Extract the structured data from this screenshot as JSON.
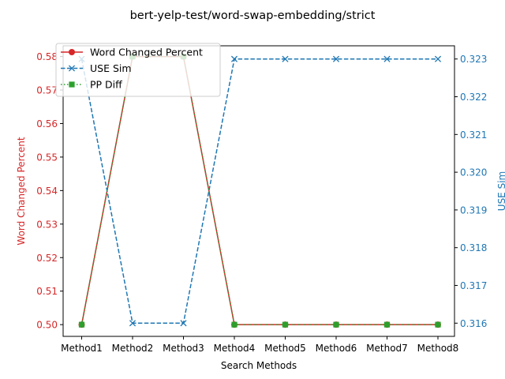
{
  "chart_data": {
    "type": "line",
    "title": "bert-yelp-test/word-swap-embedding/strict",
    "xlabel": "Search Methods",
    "ylabel_left": "Word Changed Percent",
    "ylabel_right": "USE Sim",
    "categories": [
      "Method1",
      "Method2",
      "Method3",
      "Method4",
      "Method5",
      "Method6",
      "Method7",
      "Method8"
    ],
    "left_axis": {
      "range": [
        0.4965,
        0.5832
      ],
      "ticks": [
        "0.50",
        "0.51",
        "0.52",
        "0.53",
        "0.54",
        "0.55",
        "0.56",
        "0.57",
        "0.58"
      ],
      "color": "#d62728"
    },
    "right_axis": {
      "range": [
        0.31565,
        0.32335
      ],
      "ticks": [
        "0.316",
        "0.317",
        "0.318",
        "0.319",
        "0.320",
        "0.321",
        "0.322",
        "0.323"
      ],
      "color": "#1f77b4"
    },
    "series": [
      {
        "name": "Word Changed Percent",
        "axis": "left",
        "color": "#d62728",
        "style": "solid",
        "marker": "circle",
        "values": [
          0.5,
          0.58,
          0.58,
          0.5,
          0.5,
          0.5,
          0.5,
          0.5
        ]
      },
      {
        "name": "USE Sim",
        "axis": "right",
        "color": "#1f77b4",
        "style": "dashed",
        "marker": "x",
        "values": [
          0.323,
          0.316,
          0.316,
          0.323,
          0.323,
          0.323,
          0.323,
          0.323
        ]
      },
      {
        "name": "PP Diff",
        "axis": "left",
        "color": "#2ca02c",
        "style": "dotted",
        "marker": "square",
        "values": [
          0.5,
          0.58,
          0.58,
          0.5,
          0.5,
          0.5,
          0.5,
          0.5
        ]
      }
    ],
    "legend_position": "top-left",
    "grid": false
  }
}
